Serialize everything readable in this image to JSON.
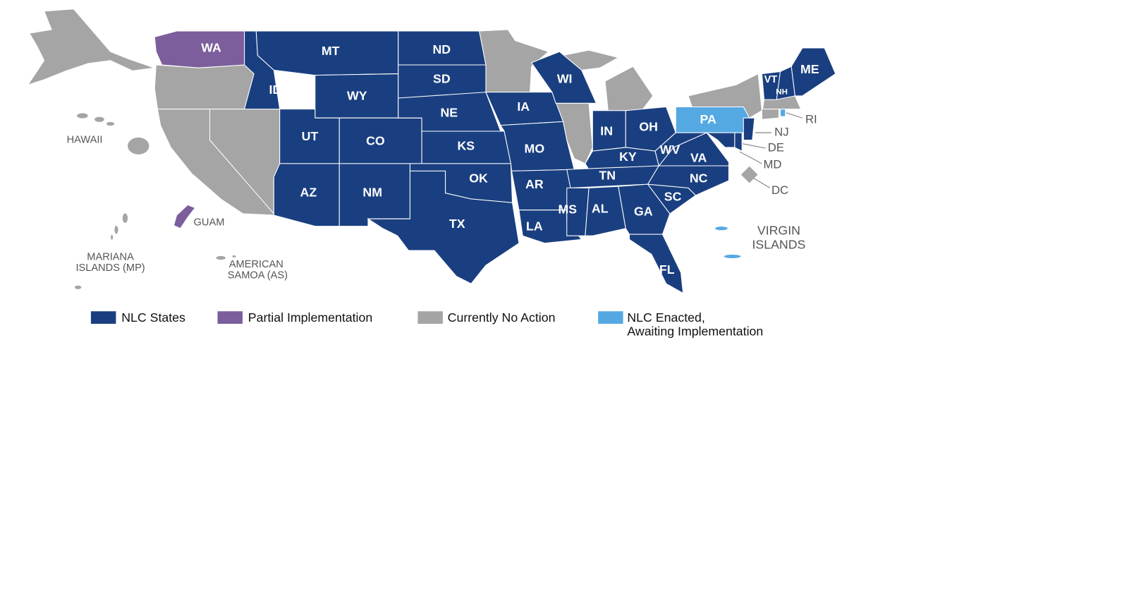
{
  "regions": [
    {
      "label": "WA",
      "color": "#7b5e9b"
    },
    {
      "label": "ID",
      "color": "#1a3f80"
    },
    {
      "label": "MT",
      "color": "#1a3f80"
    },
    {
      "label": "WY",
      "color": "#1a3f80"
    },
    {
      "label": "UT",
      "color": "#1a3f80"
    },
    {
      "label": "CO",
      "color": "#1a3f80"
    },
    {
      "label": "AZ",
      "color": "#1a3f80"
    },
    {
      "label": "NM",
      "color": "#1a3f80"
    },
    {
      "label": "ND",
      "color": "#1a3f80"
    },
    {
      "label": "SD",
      "color": "#1a3f80"
    },
    {
      "label": "NE",
      "color": "#1a3f80"
    },
    {
      "label": "KS",
      "color": "#1a3f80"
    },
    {
      "label": "OK",
      "color": "#1a3f80"
    },
    {
      "label": "TX",
      "color": "#1a3f80"
    },
    {
      "label": "IA",
      "color": "#1a3f80"
    },
    {
      "label": "MO",
      "color": "#1a3f80"
    },
    {
      "label": "AR",
      "color": "#1a3f80"
    },
    {
      "label": "LA",
      "color": "#1a3f80"
    },
    {
      "label": "WI",
      "color": "#1a3f80"
    },
    {
      "label": "IN",
      "color": "#1a3f80"
    },
    {
      "label": "OH",
      "color": "#1a3f80"
    },
    {
      "label": "KY",
      "color": "#1a3f80"
    },
    {
      "label": "TN",
      "color": "#1a3f80"
    },
    {
      "label": "MS",
      "color": "#1a3f80"
    },
    {
      "label": "AL",
      "color": "#1a3f80"
    },
    {
      "label": "GA",
      "color": "#1a3f80"
    },
    {
      "label": "FL",
      "color": "#1a3f80"
    },
    {
      "label": "SC",
      "color": "#1a3f80"
    },
    {
      "label": "NC",
      "color": "#1a3f80"
    },
    {
      "label": "VA",
      "color": "#1a3f80"
    },
    {
      "label": "WV",
      "color": "#1a3f80"
    },
    {
      "label": "PA",
      "color": "#55a9e3"
    },
    {
      "label": "VT",
      "color": "#1a3f80"
    },
    {
      "label": "NH",
      "color": "#1a3f80"
    },
    {
      "label": "ME",
      "color": "#1a3f80"
    },
    {
      "label": "NJ",
      "color": "#1a3f80"
    },
    {
      "label": "DE",
      "color": "#1a3f80"
    },
    {
      "label": "MD",
      "color": "#1a3f80"
    },
    {
      "label": "RI",
      "color": "#55a9e3"
    },
    {
      "label": "DC",
      "color": "#a5a5a5"
    },
    {
      "label": "HAWAII",
      "color": "#a5a5a5"
    },
    {
      "label": "GUAM",
      "color": "#7b5e9b"
    },
    {
      "lines": [
        "MARIANA",
        "ISLANDS (MP)"
      ],
      "color": "#a5a5a5"
    },
    {
      "lines": [
        "AMERICAN",
        "SAMOA (AS)"
      ],
      "color": "#a5a5a5"
    },
    {
      "lines": [
        "VIRGIN",
        "ISLANDS"
      ],
      "color": "#55a9e3"
    }
  ],
  "legend": [
    {
      "lines": [
        "NLC States"
      ],
      "color": "#1a3f80"
    },
    {
      "lines": [
        "Partial Implementation"
      ],
      "color": "#7b5e9b"
    },
    {
      "lines": [
        "Currently No Action"
      ],
      "color": "#a5a5a5"
    },
    {
      "lines": [
        "NLC Enacted,",
        "Awaiting Implementation"
      ],
      "color": "#55a9e3"
    }
  ]
}
